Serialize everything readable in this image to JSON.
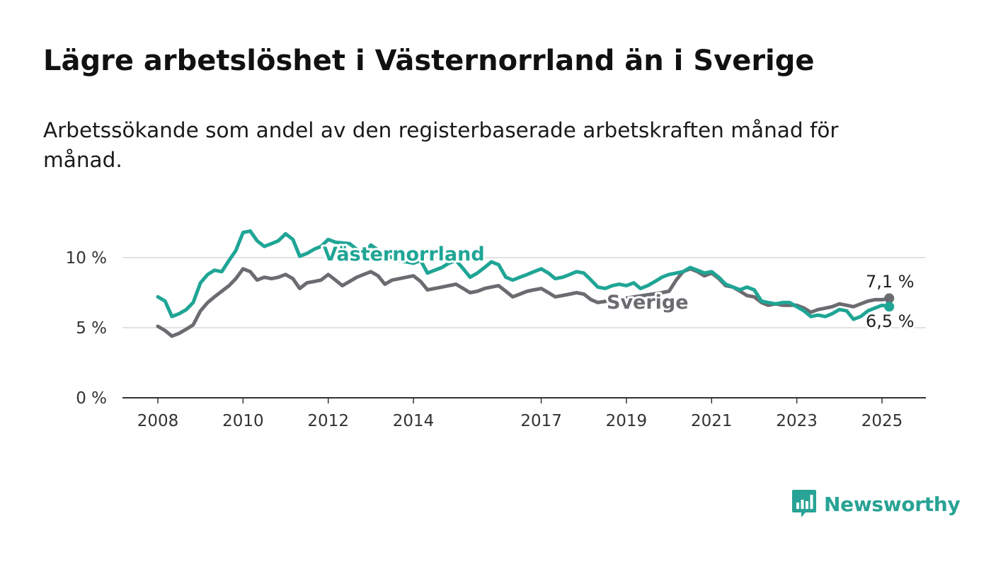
{
  "title": "Lägre arbetslöshet i Västernorrland än i Sverige",
  "subtitle": "Arbetssökande som andel av den registerbaserade arbetskraften månad för månad.",
  "brand": {
    "name": "Newsworthy",
    "color": "#28a395",
    "icon": "bar-chart-speech-bubble-icon"
  },
  "colors": {
    "vasternorrland": "#1fa595",
    "sverige": "#6b6b70",
    "grid": "#d9d9d9",
    "axis": "#333333"
  },
  "chart_data": {
    "type": "line",
    "x_range": [
      2008.0,
      2025.17
    ],
    "ylim": [
      0,
      12.2
    ],
    "y_ticks": [
      {
        "value": 0,
        "label": "0 %"
      },
      {
        "value": 5,
        "label": "5 %"
      },
      {
        "value": 10,
        "label": "10 %"
      }
    ],
    "x_ticks": [
      {
        "value": 2008,
        "label": "2008"
      },
      {
        "value": 2010,
        "label": "2010"
      },
      {
        "value": 2012,
        "label": "2012"
      },
      {
        "value": 2014,
        "label": "2014"
      },
      {
        "value": 2017,
        "label": "2017"
      },
      {
        "value": 2019,
        "label": "2019"
      },
      {
        "value": 2021,
        "label": "2021"
      },
      {
        "value": 2023,
        "label": "2023"
      },
      {
        "value": 2025,
        "label": "2025"
      }
    ],
    "grid": true,
    "series": [
      {
        "name": "Västernorrland",
        "end_label": "6,5 %",
        "values": [
          [
            2008.0,
            7.2
          ],
          [
            2008.17,
            6.9
          ],
          [
            2008.33,
            5.8
          ],
          [
            2008.5,
            6.0
          ],
          [
            2008.67,
            6.3
          ],
          [
            2008.83,
            6.8
          ],
          [
            2009.0,
            8.2
          ],
          [
            2009.17,
            8.8
          ],
          [
            2009.33,
            9.1
          ],
          [
            2009.5,
            9.0
          ],
          [
            2009.67,
            9.8
          ],
          [
            2009.83,
            10.5
          ],
          [
            2010.0,
            11.8
          ],
          [
            2010.17,
            11.9
          ],
          [
            2010.33,
            11.2
          ],
          [
            2010.5,
            10.8
          ],
          [
            2010.67,
            11.0
          ],
          [
            2010.83,
            11.2
          ],
          [
            2011.0,
            11.7
          ],
          [
            2011.17,
            11.3
          ],
          [
            2011.33,
            10.1
          ],
          [
            2011.5,
            10.3
          ],
          [
            2011.67,
            10.6
          ],
          [
            2011.83,
            10.8
          ],
          [
            2012.0,
            11.3
          ],
          [
            2012.17,
            11.1
          ],
          [
            2012.5,
            11.0
          ],
          [
            2012.83,
            10.2
          ],
          [
            2013.0,
            10.9
          ],
          [
            2013.33,
            10.2
          ],
          [
            2013.67,
            9.8
          ],
          [
            2014.0,
            9.6
          ],
          [
            2014.17,
            9.8
          ],
          [
            2014.33,
            8.9
          ],
          [
            2014.5,
            9.1
          ],
          [
            2014.67,
            9.3
          ],
          [
            2014.83,
            9.6
          ],
          [
            2015.0,
            9.8
          ],
          [
            2015.17,
            9.2
          ],
          [
            2015.33,
            8.6
          ],
          [
            2015.5,
            8.9
          ],
          [
            2015.67,
            9.3
          ],
          [
            2015.83,
            9.7
          ],
          [
            2016.0,
            9.5
          ],
          [
            2016.17,
            8.6
          ],
          [
            2016.33,
            8.4
          ],
          [
            2016.5,
            8.6
          ],
          [
            2016.67,
            8.8
          ],
          [
            2016.83,
            9.0
          ],
          [
            2017.0,
            9.2
          ],
          [
            2017.17,
            8.9
          ],
          [
            2017.33,
            8.5
          ],
          [
            2017.5,
            8.6
          ],
          [
            2017.67,
            8.8
          ],
          [
            2017.83,
            9.0
          ],
          [
            2018.0,
            8.9
          ],
          [
            2018.17,
            8.4
          ],
          [
            2018.33,
            7.9
          ],
          [
            2018.5,
            7.8
          ],
          [
            2018.67,
            8.0
          ],
          [
            2018.83,
            8.1
          ],
          [
            2019.0,
            8.0
          ],
          [
            2019.17,
            8.2
          ],
          [
            2019.33,
            7.8
          ],
          [
            2019.5,
            8.0
          ],
          [
            2019.67,
            8.3
          ],
          [
            2019.83,
            8.6
          ],
          [
            2020.0,
            8.8
          ],
          [
            2020.17,
            8.9
          ],
          [
            2020.33,
            9.0
          ],
          [
            2020.5,
            9.3
          ],
          [
            2020.67,
            9.1
          ],
          [
            2020.83,
            8.9
          ],
          [
            2021.0,
            9.0
          ],
          [
            2021.17,
            8.6
          ],
          [
            2021.33,
            8.1
          ],
          [
            2021.5,
            7.9
          ],
          [
            2021.67,
            7.7
          ],
          [
            2021.83,
            7.9
          ],
          [
            2022.0,
            7.7
          ],
          [
            2022.17,
            6.9
          ],
          [
            2022.33,
            6.8
          ],
          [
            2022.5,
            6.7
          ],
          [
            2022.67,
            6.8
          ],
          [
            2022.83,
            6.8
          ],
          [
            2023.0,
            6.5
          ],
          [
            2023.17,
            6.2
          ],
          [
            2023.33,
            5.8
          ],
          [
            2023.5,
            5.9
          ],
          [
            2023.67,
            5.8
          ],
          [
            2023.83,
            6.0
          ],
          [
            2024.0,
            6.3
          ],
          [
            2024.17,
            6.2
          ],
          [
            2024.33,
            5.6
          ],
          [
            2024.5,
            5.8
          ],
          [
            2024.67,
            6.2
          ],
          [
            2024.83,
            6.4
          ],
          [
            2025.0,
            6.6
          ],
          [
            2025.17,
            6.5
          ]
        ]
      },
      {
        "name": "Sverige",
        "end_label": "7,1 %",
        "values": [
          [
            2008.0,
            5.1
          ],
          [
            2008.17,
            4.8
          ],
          [
            2008.33,
            4.4
          ],
          [
            2008.5,
            4.6
          ],
          [
            2008.67,
            4.9
          ],
          [
            2008.83,
            5.2
          ],
          [
            2009.0,
            6.2
          ],
          [
            2009.17,
            6.8
          ],
          [
            2009.33,
            7.2
          ],
          [
            2009.5,
            7.6
          ],
          [
            2009.67,
            8.0
          ],
          [
            2009.83,
            8.5
          ],
          [
            2010.0,
            9.2
          ],
          [
            2010.17,
            9.0
          ],
          [
            2010.33,
            8.4
          ],
          [
            2010.5,
            8.6
          ],
          [
            2010.67,
            8.5
          ],
          [
            2010.83,
            8.6
          ],
          [
            2011.0,
            8.8
          ],
          [
            2011.17,
            8.5
          ],
          [
            2011.33,
            7.8
          ],
          [
            2011.5,
            8.2
          ],
          [
            2011.67,
            8.3
          ],
          [
            2011.83,
            8.4
          ],
          [
            2012.0,
            8.8
          ],
          [
            2012.17,
            8.4
          ],
          [
            2012.33,
            8.0
          ],
          [
            2012.5,
            8.3
          ],
          [
            2012.67,
            8.6
          ],
          [
            2012.83,
            8.8
          ],
          [
            2013.0,
            9.0
          ],
          [
            2013.17,
            8.7
          ],
          [
            2013.33,
            8.1
          ],
          [
            2013.5,
            8.4
          ],
          [
            2013.67,
            8.5
          ],
          [
            2013.83,
            8.6
          ],
          [
            2014.0,
            8.7
          ],
          [
            2014.17,
            8.3
          ],
          [
            2014.33,
            7.7
          ],
          [
            2014.5,
            7.8
          ],
          [
            2014.67,
            7.9
          ],
          [
            2014.83,
            8.0
          ],
          [
            2015.0,
            8.1
          ],
          [
            2015.17,
            7.8
          ],
          [
            2015.33,
            7.5
          ],
          [
            2015.5,
            7.6
          ],
          [
            2015.67,
            7.8
          ],
          [
            2015.83,
            7.9
          ],
          [
            2016.0,
            8.0
          ],
          [
            2016.17,
            7.6
          ],
          [
            2016.33,
            7.2
          ],
          [
            2016.5,
            7.4
          ],
          [
            2016.67,
            7.6
          ],
          [
            2016.83,
            7.7
          ],
          [
            2017.0,
            7.8
          ],
          [
            2017.17,
            7.5
          ],
          [
            2017.33,
            7.2
          ],
          [
            2017.5,
            7.3
          ],
          [
            2017.67,
            7.4
          ],
          [
            2017.83,
            7.5
          ],
          [
            2018.0,
            7.4
          ],
          [
            2018.17,
            7.0
          ],
          [
            2018.33,
            6.8
          ],
          [
            2019.83,
            7.5
          ],
          [
            2020.0,
            7.6
          ],
          [
            2020.17,
            8.4
          ],
          [
            2020.33,
            9.0
          ],
          [
            2020.5,
            9.2
          ],
          [
            2020.67,
            9.0
          ],
          [
            2020.83,
            8.7
          ],
          [
            2021.0,
            8.9
          ],
          [
            2021.17,
            8.5
          ],
          [
            2021.33,
            8.0
          ],
          [
            2021.5,
            7.9
          ],
          [
            2021.67,
            7.6
          ],
          [
            2021.83,
            7.3
          ],
          [
            2022.0,
            7.2
          ],
          [
            2022.17,
            6.8
          ],
          [
            2022.33,
            6.6
          ],
          [
            2022.5,
            6.7
          ],
          [
            2022.67,
            6.6
          ],
          [
            2022.83,
            6.6
          ],
          [
            2023.0,
            6.6
          ],
          [
            2023.17,
            6.4
          ],
          [
            2023.33,
            6.1
          ],
          [
            2023.5,
            6.3
          ],
          [
            2023.67,
            6.4
          ],
          [
            2023.83,
            6.5
          ],
          [
            2024.0,
            6.7
          ],
          [
            2024.17,
            6.6
          ],
          [
            2024.33,
            6.5
          ],
          [
            2024.5,
            6.7
          ],
          [
            2024.67,
            6.9
          ],
          [
            2024.83,
            7.0
          ],
          [
            2025.0,
            7.0
          ],
          [
            2025.17,
            7.1
          ]
        ]
      }
    ]
  }
}
